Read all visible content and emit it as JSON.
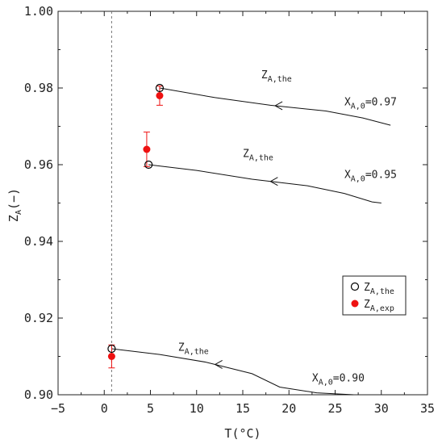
{
  "chart_data": {
    "type": "scatter",
    "xlabel": "T(°C)",
    "ylabel": {
      "main": "Z",
      "sub": "A",
      "suffix": "(−)"
    },
    "xlim": [
      -5,
      35
    ],
    "ylim": [
      0.9,
      1.0
    ],
    "x_ticks": [
      -5,
      0,
      5,
      10,
      15,
      20,
      25,
      30,
      35
    ],
    "y_ticks": [
      0.9,
      0.92,
      0.94,
      0.96,
      0.98,
      1.0
    ],
    "x_tick_labels": [
      "−5",
      "0",
      "5",
      "10",
      "15",
      "20",
      "25",
      "30",
      "35"
    ],
    "y_tick_labels": [
      "0.90",
      "0.92",
      "0.94",
      "0.96",
      "0.98",
      "1.00"
    ],
    "grid": false,
    "reference_line": {
      "x": 0.8,
      "style": "dashed"
    },
    "lines": [
      {
        "points": [
          [
            6.0,
            0.98
          ],
          [
            12,
            0.9775
          ],
          [
            18,
            0.9755
          ],
          [
            24,
            0.974
          ],
          [
            28,
            0.9722
          ],
          [
            31,
            0.9703
          ]
        ],
        "arrow_at_x": 18.5
      },
      {
        "points": [
          [
            4.8,
            0.96
          ],
          [
            10,
            0.9585
          ],
          [
            16,
            0.9562
          ],
          [
            22,
            0.9545
          ],
          [
            26,
            0.9525
          ],
          [
            29,
            0.9503
          ],
          [
            30,
            0.95
          ]
        ],
        "arrow_at_x": 18
      },
      {
        "points": [
          [
            0.8,
            0.912
          ],
          [
            6,
            0.9105
          ],
          [
            11,
            0.9085
          ],
          [
            16,
            0.9055
          ],
          [
            19,
            0.902
          ],
          [
            23,
            0.9005
          ],
          [
            27,
            0.9
          ]
        ],
        "arrow_at_x": 12
      }
    ],
    "series": [
      {
        "name": "Z",
        "sub": "A,the",
        "marker": "open-circle",
        "color": "#000000",
        "points": [
          [
            6.0,
            0.98
          ],
          [
            4.8,
            0.96
          ],
          [
            0.8,
            0.912
          ]
        ]
      },
      {
        "name": "Z",
        "sub": "A,exp",
        "marker": "filled-circle",
        "color": "#ee1111",
        "points": [
          [
            6.0,
            0.978
          ],
          [
            4.6,
            0.964
          ],
          [
            0.8,
            0.91
          ]
        ],
        "errors": [
          0.0025,
          0.0045,
          0.003
        ]
      }
    ],
    "annotations": [
      {
        "main": "Z",
        "sub": "A,the",
        "x": 17,
        "y": 0.9825
      },
      {
        "main": "X",
        "sub": "A,0",
        "suffix": "=0.97",
        "x": 26,
        "y": 0.9755
      },
      {
        "main": "Z",
        "sub": "A,the",
        "x": 15,
        "y": 0.962
      },
      {
        "main": "X",
        "sub": "A,0",
        "suffix": "=0.95",
        "x": 26,
        "y": 0.9565
      },
      {
        "main": "Z",
        "sub": "A,the",
        "x": 8,
        "y": 0.9115
      },
      {
        "main": "X",
        "sub": "A,0",
        "suffix": "=0.90",
        "x": 22.5,
        "y": 0.9035
      }
    ],
    "legend_placement": "right"
  }
}
